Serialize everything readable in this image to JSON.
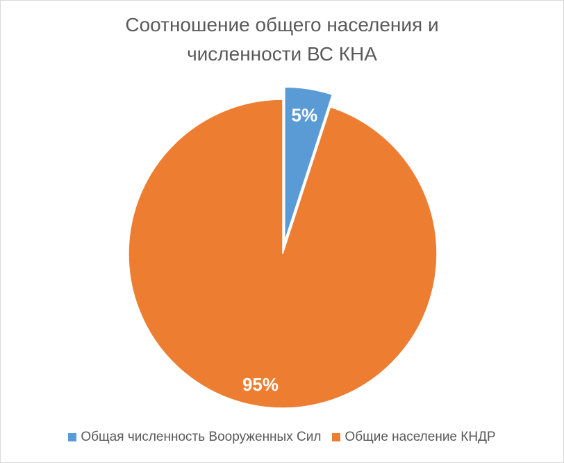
{
  "chart_data": {
    "type": "pie",
    "title_lines": [
      "Соотношение общего населения и",
      "численности ВС КНА"
    ],
    "labels": [
      "Общая численность Вооруженных Сил",
      "Общие население КНДР"
    ],
    "values": [
      5,
      95
    ],
    "data_labels": [
      "5%",
      "95%"
    ],
    "colors": [
      "#5B9BD5",
      "#ED7D31"
    ],
    "exploded_slice": "Общая численность Вооруженных Сил",
    "legend_position": "bottom"
  }
}
